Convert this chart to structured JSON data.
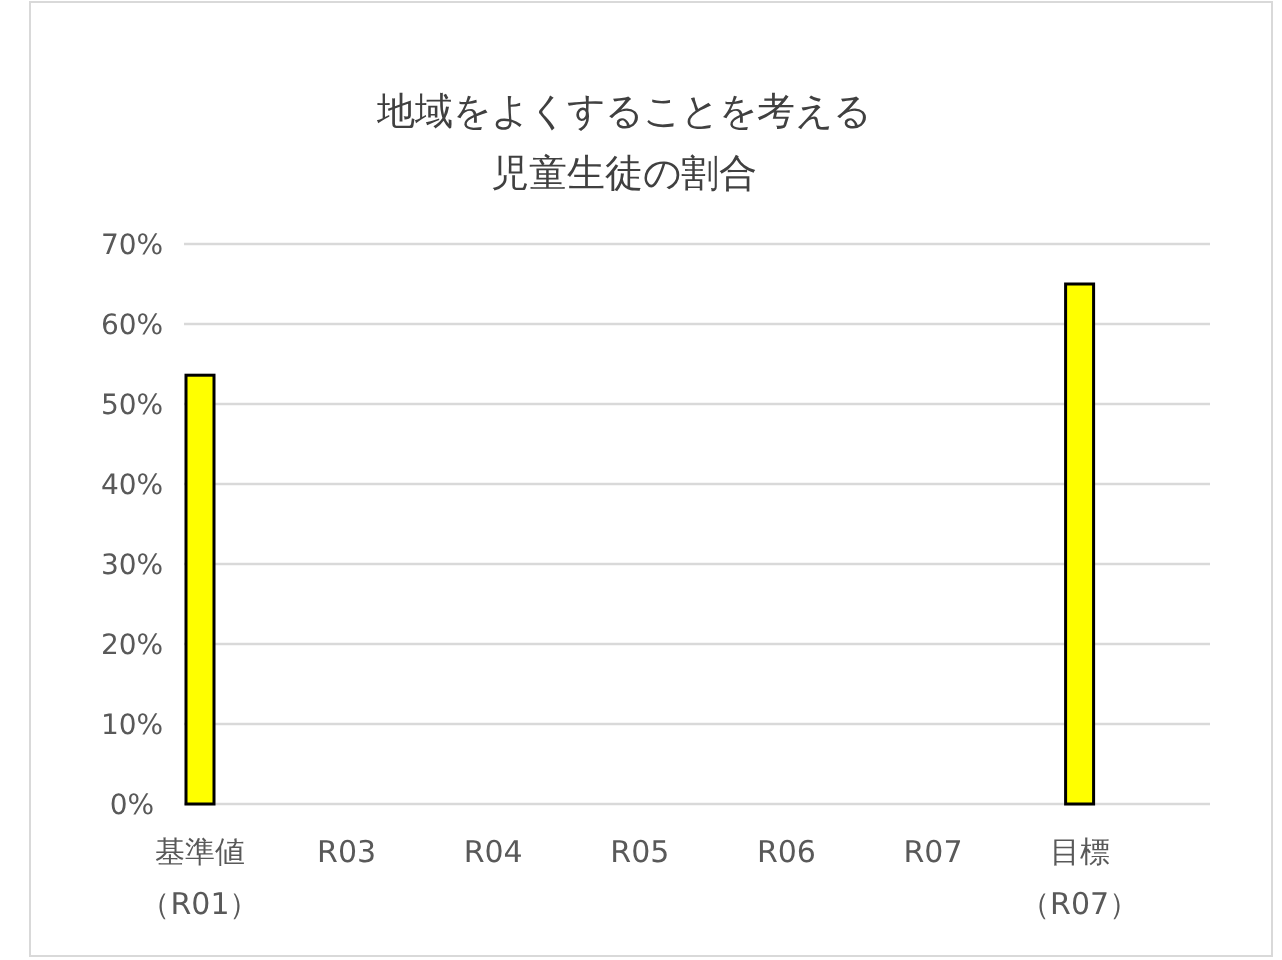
{
  "chart_data": {
    "type": "bar",
    "title": "地域をよくすることを考える児童生徒の割合",
    "categories": [
      "基準値（R01）",
      "R03",
      "R04",
      "R05",
      "R06",
      "R07",
      "目標（R07）"
    ],
    "values": [
      53.6,
      null,
      null,
      null,
      null,
      null,
      65
    ],
    "color": "#ffff00",
    "ylim": [
      0,
      70
    ],
    "yticks": [
      {
        "value": 0,
        "label": "0%"
      },
      {
        "value": 10,
        "label": "10%"
      },
      {
        "value": 20,
        "label": "20%"
      },
      {
        "value": 30,
        "label": "30%"
      },
      {
        "value": 40,
        "label": "40%"
      },
      {
        "value": 50,
        "label": "50%"
      },
      {
        "value": 60,
        "label": "60%"
      },
      {
        "value": 70,
        "label": "70%"
      }
    ],
    "grid": "y"
  }
}
